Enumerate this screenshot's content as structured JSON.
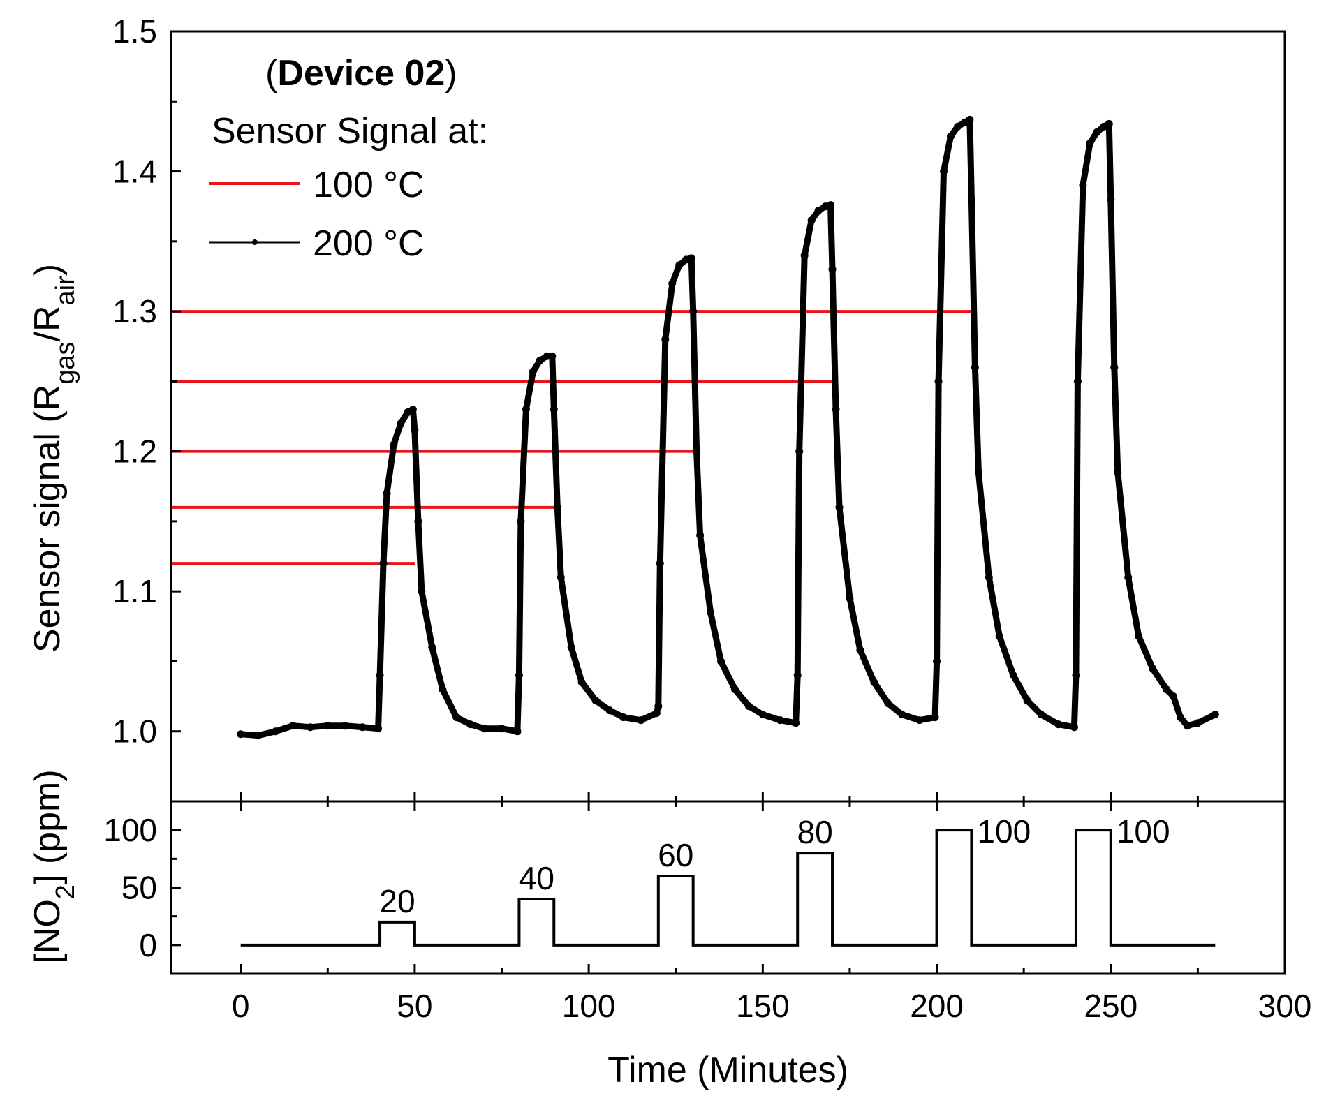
{
  "chart_data": [
    {
      "panel": "top",
      "type": "line",
      "annotation": {
        "open": "(",
        "bold": "Device 02",
        "close": ")"
      },
      "legend_title": "Sensor Signal at:",
      "legend_placement": "top-left",
      "ylabel": {
        "main": "Sensor signal (R",
        "sub1": "gas",
        "mid": "/R",
        "sub2": "air",
        "end": ")"
      },
      "ylim": [
        0.95,
        1.5
      ],
      "yticks": [
        "1.0",
        "1.1",
        "1.2",
        "1.3",
        "1.4",
        "1.5"
      ],
      "yticks_values": [
        1.0,
        1.1,
        1.2,
        1.3,
        1.4,
        1.5
      ],
      "series": [
        {
          "name": "100 °C",
          "color": "#e8141b",
          "style": "horizontal levels",
          "segments": [
            {
              "y": 1.12,
              "x": [
                -20,
                50
              ]
            },
            {
              "y": 1.16,
              "x": [
                -20,
                90
              ]
            },
            {
              "y": 1.2,
              "x": [
                -20,
                130
              ]
            },
            {
              "y": 1.25,
              "x": [
                -20,
                170
              ]
            },
            {
              "y": 1.3,
              "x": [
                -20,
                210
              ]
            }
          ]
        },
        {
          "name": "200 °C",
          "color": "#000000",
          "style": "line with dot markers",
          "x": [
            0,
            5,
            10,
            15,
            20,
            25,
            30,
            35,
            39.5,
            40,
            41,
            42,
            44,
            46,
            48,
            49.5,
            50,
            51,
            52,
            55,
            58,
            62,
            66,
            70,
            75,
            79.5,
            80,
            80.5,
            82,
            84,
            86,
            88,
            89.5,
            90,
            91,
            92,
            95,
            98,
            102,
            106,
            110,
            115,
            119.5,
            120,
            120.5,
            122,
            124,
            126,
            128,
            129.5,
            130,
            131,
            132,
            135,
            138,
            142,
            146,
            150,
            155,
            159.5,
            160,
            160.5,
            162,
            164,
            166,
            168,
            169.5,
            170,
            171,
            172,
            175,
            178,
            182,
            186,
            190,
            195,
            199.5,
            200,
            200.5,
            202,
            204,
            206,
            208,
            209.5,
            210,
            211,
            212,
            215,
            218,
            222,
            226,
            230,
            235,
            239.5,
            240,
            240.5,
            242,
            244,
            246,
            248,
            249.5,
            250,
            251,
            252,
            255,
            258,
            262,
            266,
            268,
            270,
            272,
            275,
            280
          ],
          "y": [
            0.998,
            0.997,
            1.0,
            1.004,
            1.003,
            1.004,
            1.004,
            1.003,
            1.002,
            1.04,
            1.12,
            1.17,
            1.205,
            1.22,
            1.228,
            1.23,
            1.215,
            1.15,
            1.1,
            1.06,
            1.03,
            1.01,
            1.005,
            1.002,
            1.002,
            1.0,
            1.04,
            1.15,
            1.23,
            1.257,
            1.265,
            1.268,
            1.268,
            1.23,
            1.16,
            1.11,
            1.06,
            1.035,
            1.022,
            1.015,
            1.01,
            1.008,
            1.013,
            1.018,
            1.12,
            1.28,
            1.32,
            1.333,
            1.337,
            1.338,
            1.3,
            1.2,
            1.14,
            1.085,
            1.05,
            1.03,
            1.018,
            1.012,
            1.008,
            1.006,
            1.04,
            1.2,
            1.34,
            1.365,
            1.372,
            1.375,
            1.376,
            1.33,
            1.23,
            1.16,
            1.095,
            1.058,
            1.035,
            1.02,
            1.012,
            1.008,
            1.01,
            1.05,
            1.25,
            1.4,
            1.425,
            1.432,
            1.435,
            1.437,
            1.38,
            1.26,
            1.185,
            1.11,
            1.068,
            1.04,
            1.022,
            1.012,
            1.005,
            1.003,
            1.04,
            1.25,
            1.39,
            1.42,
            1.428,
            1.432,
            1.434,
            1.38,
            1.26,
            1.185,
            1.11,
            1.068,
            1.045,
            1.03,
            1.025,
            1.01,
            1.004,
            1.006,
            1.012
          ]
        }
      ]
    },
    {
      "panel": "bottom",
      "type": "line",
      "series_name": "[NO2] concentration",
      "xlabel": "Time (Minutes)",
      "ylabel": {
        "pre": "[NO",
        "sub": "2",
        "post": "] (ppm)"
      },
      "xlim": [
        -20,
        300
      ],
      "xticks": [
        "0",
        "50",
        "100",
        "150",
        "200",
        "250",
        "300"
      ],
      "xticks_values": [
        0,
        50,
        100,
        150,
        200,
        250,
        300
      ],
      "ylim": [
        -25,
        125
      ],
      "yticks": [
        "0",
        "50",
        "100"
      ],
      "yticks_values": [
        0,
        50,
        100
      ],
      "pulses": [
        {
          "start": 40,
          "end": 50,
          "value": 20,
          "label": "20"
        },
        {
          "start": 80,
          "end": 90,
          "value": 40,
          "label": "40"
        },
        {
          "start": 120,
          "end": 130,
          "value": 60,
          "label": "60"
        },
        {
          "start": 160,
          "end": 170,
          "value": 80,
          "label": "80"
        },
        {
          "start": 200,
          "end": 210,
          "value": 100,
          "label": "100"
        },
        {
          "start": 240,
          "end": 250,
          "value": 100,
          "label": "100"
        }
      ],
      "baseline_range": [
        0,
        280
      ]
    }
  ]
}
